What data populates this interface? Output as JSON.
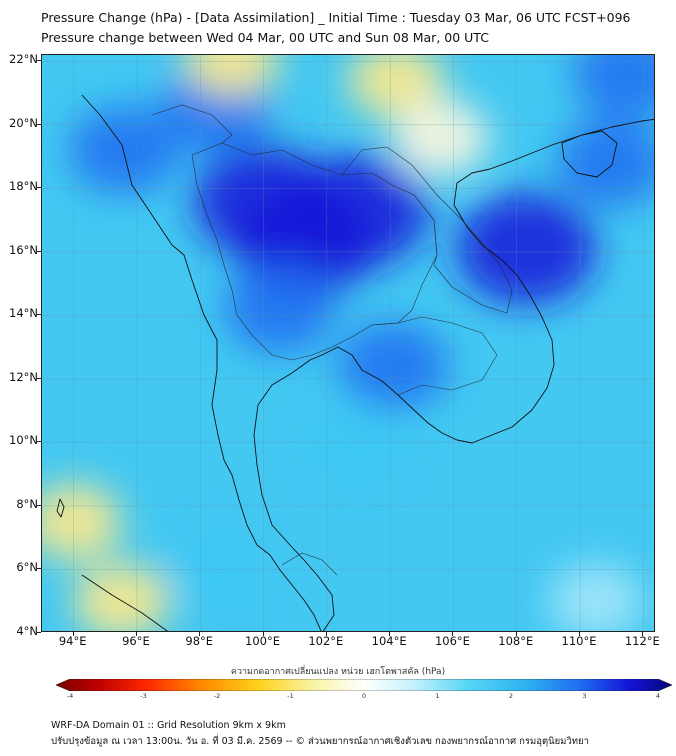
{
  "title_line1": "Pressure Change (hPa) - [Data Assimilation] _ Initial Time : Tuesday 03 Mar, 06 UTC FCST+096",
  "title_line2": "Pressure change between Wed 04 Mar, 00 UTC and Sun 08 Mar, 00 UTC",
  "lat_ticks": [
    "22°N",
    "20°N",
    "18°N",
    "16°N",
    "14°N",
    "12°N",
    "10°N",
    "8°N",
    "6°N",
    "4°N"
  ],
  "lon_ticks": [
    "94°E",
    "96°E",
    "98°E",
    "100°E",
    "102°E",
    "104°E",
    "106°E",
    "108°E",
    "110°E",
    "112°E"
  ],
  "map_extent": {
    "lon_min": 93,
    "lon_max": 112.4,
    "lat_min": 4,
    "lat_max": 22.2
  },
  "colorbar_label": "ความกดอากาศเปลี่ยนแปลง หน่วย เฮกโตพาสคัล (hPa)",
  "colorbar_ticks": [
    "-4",
    "-3",
    "-2",
    "-1",
    "0",
    "1",
    "2",
    "3",
    "4"
  ],
  "colorbar_range": [
    -4,
    4
  ],
  "footer_line1": "WRF-DA Domain 01 :: Grid Resolution 9km x 9km",
  "footer_line2": "ปรับปรุงข้อมูล ณ เวลา 13:00น. วัน อ. ที่ 03 มี.ค. 2569 -- © ส่วนพยากรณ์อากาศเชิงตัวเลข กองพยากรณ์อากาศ กรมอุตุนิยมวิทยา",
  "colors": {
    "strong_fall": "#1414d8",
    "moderate_fall": "#1e6ef0",
    "weak_fall": "#3cc8f5",
    "neutral": "#f5f5e0",
    "weak_rise": "#f5e890",
    "coastline": "#111111"
  },
  "field_blobs": [
    {
      "lon": 101.3,
      "lat": 16.3,
      "value": 4.0
    },
    {
      "lon": 100.0,
      "lat": 17.6,
      "value": 3.6
    },
    {
      "lon": 103.0,
      "lat": 17.3,
      "value": 3.6
    },
    {
      "lon": 108.3,
      "lat": 16.1,
      "value": 3.7
    },
    {
      "lon": 104.1,
      "lat": 12.4,
      "value": 3.4
    },
    {
      "lon": 95.6,
      "lat": 19.2,
      "value": 3.0
    },
    {
      "lon": 111.0,
      "lat": 18.8,
      "value": 3.0
    },
    {
      "lon": 111.5,
      "lat": 21.6,
      "value": 3.4
    },
    {
      "lon": 98.5,
      "lat": 20.5,
      "value": 2.6
    },
    {
      "lon": 100.5,
      "lat": 14.2,
      "value": 2.7
    },
    {
      "lon": 103.0,
      "lat": 10.0,
      "value": 2.0
    },
    {
      "lon": 98.5,
      "lat": 6.0,
      "value": 2.0
    },
    {
      "lon": 95.5,
      "lat": 5.0,
      "value": -0.6
    },
    {
      "lon": 94.0,
      "lat": 7.5,
      "value": -0.3
    },
    {
      "lon": 104.2,
      "lat": 21.4,
      "value": -0.5
    },
    {
      "lon": 99.0,
      "lat": 22.1,
      "value": -0.4
    },
    {
      "lon": 105.6,
      "lat": 19.6,
      "value": 0.2
    },
    {
      "lon": 110.5,
      "lat": 5.0,
      "value": 0.9
    }
  ]
}
